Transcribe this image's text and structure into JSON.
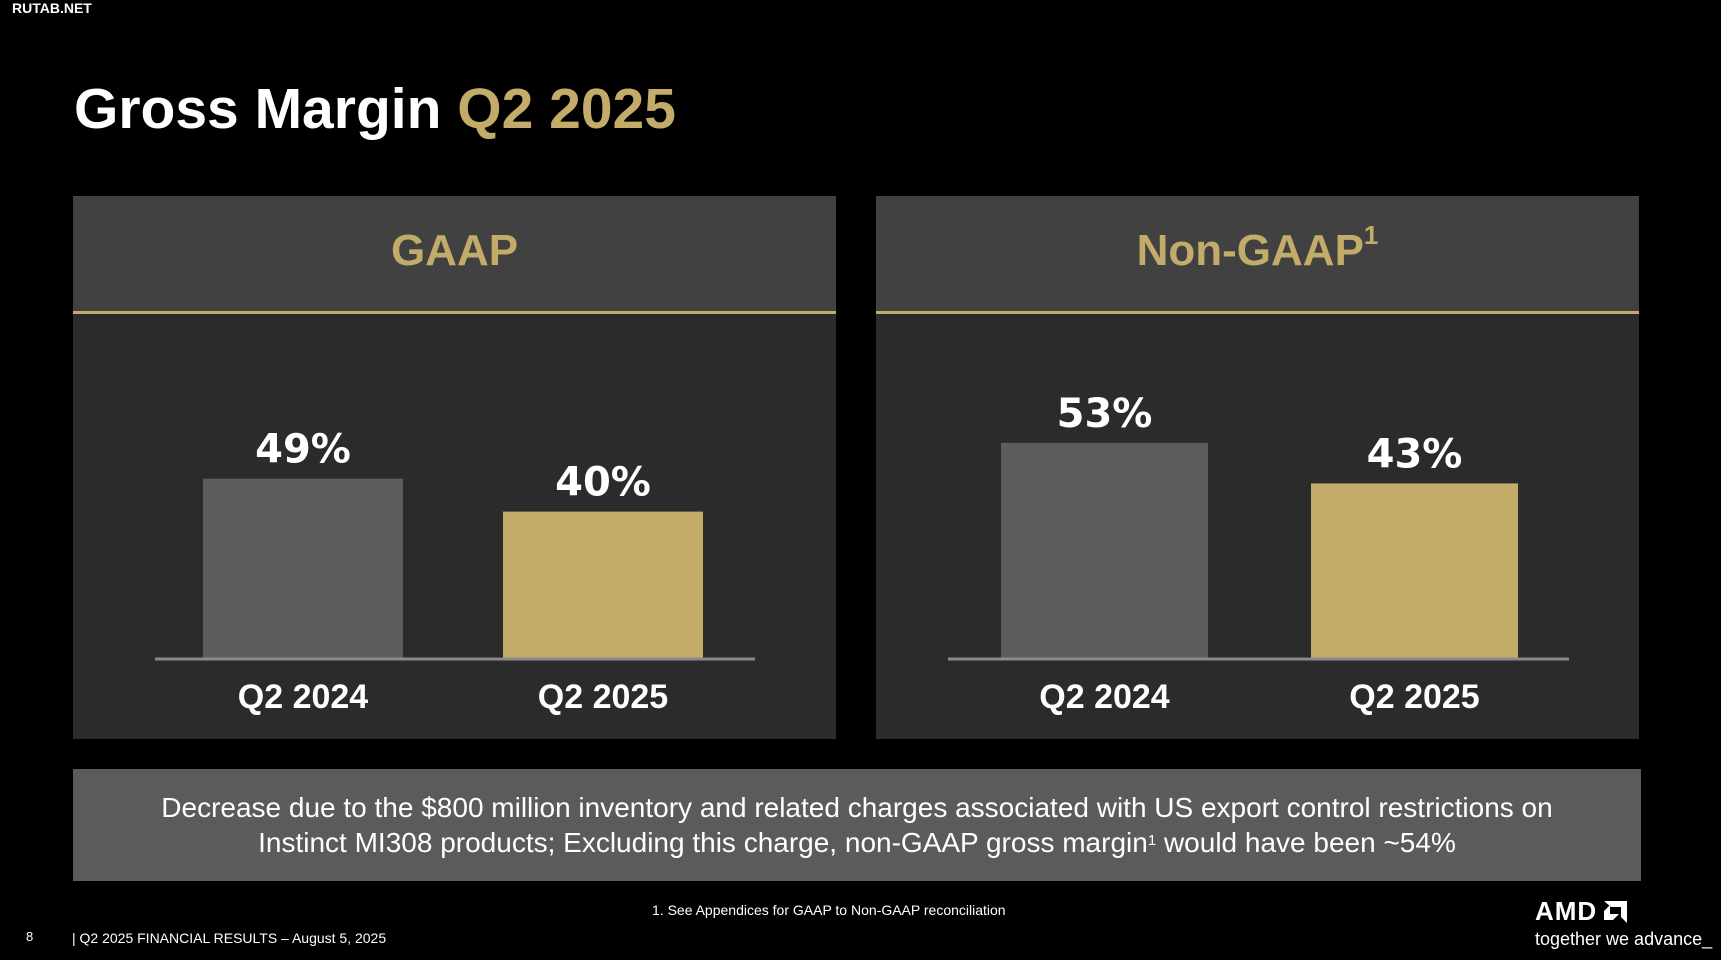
{
  "watermark": "RUTAB.NET",
  "title": {
    "main": "Gross Margin",
    "accent": "Q2 2025"
  },
  "colors": {
    "accent": "#c3ab6a",
    "prior_bar": "#5c5c5c",
    "panel_bg": "#2b2b2b",
    "panel_header": "#414141"
  },
  "chart_data": [
    {
      "type": "bar",
      "title": "GAAP",
      "categories": [
        "Q2 2024",
        "Q2 2025"
      ],
      "values": [
        49,
        40
      ],
      "data_labels": [
        "49%",
        "40%"
      ]
    },
    {
      "type": "bar",
      "title": "Non-GAAP",
      "title_sup": "1",
      "categories": [
        "Q2 2024",
        "Q2 2025"
      ],
      "values": [
        53,
        43
      ],
      "data_labels": [
        "53%",
        "43%"
      ]
    }
  ],
  "note": {
    "line1": "Decrease due to the $800 million inventory and related charges associated with US export control restrictions on",
    "line2_a": "Instinct MI308 products; Excluding this charge, non-GAAP gross margin",
    "line2_sup": "1",
    "line2_b": " would have been ~54%"
  },
  "footnote": "1. See Appendices for GAAP to Non-GAAP reconciliation",
  "footer": {
    "page_number": "8",
    "text": "|   Q2 2025 FINANCIAL RESULTS – August 5, 2025"
  },
  "logo": {
    "wordmark": "AMD",
    "icon": "amd-arrow-icon",
    "tagline": "together we advance_"
  }
}
